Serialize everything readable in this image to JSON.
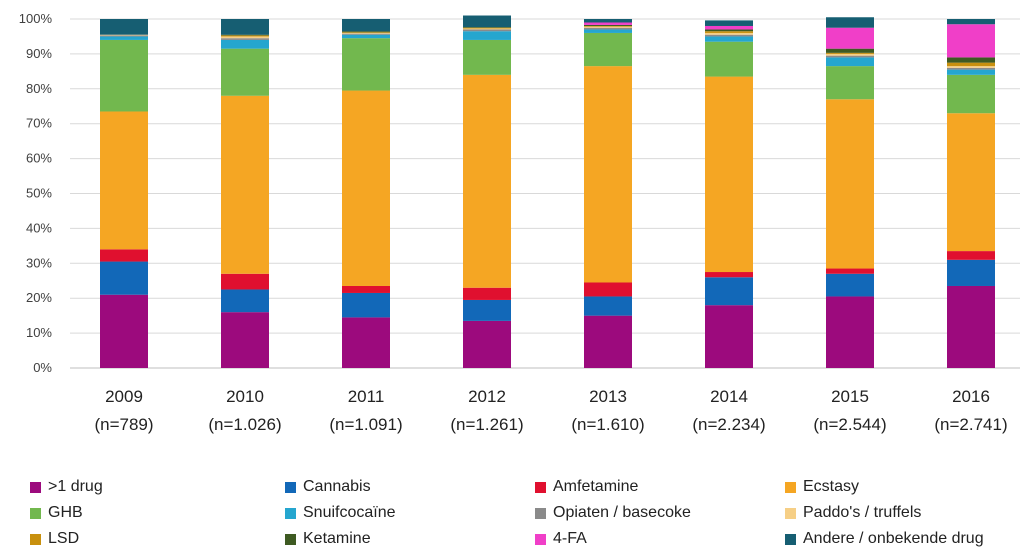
{
  "chart_data": {
    "type": "bar",
    "stacked": true,
    "percent": true,
    "ylim": [
      0,
      100
    ],
    "yticks": [
      "0%",
      "10%",
      "20%",
      "30%",
      "40%",
      "50%",
      "60%",
      "70%",
      "80%",
      "90%",
      "100%"
    ],
    "grid": true,
    "legend_position": "bottom",
    "categories": [
      "2009",
      "2010",
      "2011",
      "2012",
      "2013",
      "2014",
      "2015",
      "2016"
    ],
    "category_sublabels": [
      "(n=789)",
      "(n=1.026)",
      "(n=1.091)",
      "(n=1.261)",
      "(n=1.610)",
      "(n=2.234)",
      "(n=2.544)",
      "(n=2.741)"
    ],
    "series": [
      {
        "name": ">1 drug",
        "color": "#9c0a7d",
        "values": [
          21,
          16,
          14.5,
          13.5,
          15,
          18,
          20.5,
          23.5
        ]
      },
      {
        "name": "Cannabis",
        "color": "#1268b8",
        "values": [
          9.5,
          6.5,
          7,
          6,
          5.5,
          8,
          6.5,
          7.5
        ]
      },
      {
        "name": "Amfetamine",
        "color": "#e0102f",
        "values": [
          3.5,
          4.5,
          2,
          3.5,
          4,
          1.5,
          1.5,
          2.5
        ]
      },
      {
        "name": "Ecstasy",
        "color": "#f5a623",
        "values": [
          39.5,
          51,
          56,
          61,
          62,
          56,
          48.5,
          39.5
        ]
      },
      {
        "name": "GHB",
        "color": "#72b84e",
        "values": [
          20.5,
          13.5,
          15,
          10,
          9.5,
          10,
          9.5,
          11
        ]
      },
      {
        "name": "Snuifcocaïne",
        "color": "#25a6cf",
        "values": [
          1,
          2.5,
          1,
          2.5,
          1,
          1.5,
          2.5,
          1.5
        ]
      },
      {
        "name": "Opiaten / basecoke",
        "color": "#8a8a8a",
        "values": [
          0.3,
          0.5,
          0.3,
          0.5,
          0.5,
          0.5,
          0.5,
          0.5
        ]
      },
      {
        "name": "Paddo's / truffels",
        "color": "#f6cf86",
        "values": [
          0.2,
          0.5,
          0.2,
          0.3,
          0.3,
          0.5,
          0.5,
          0.5
        ]
      },
      {
        "name": "LSD",
        "color": "#c8900e",
        "values": [
          0,
          0.3,
          0.2,
          0.2,
          0.2,
          0.5,
          0.3,
          1
        ]
      },
      {
        "name": "Ketamine",
        "color": "#3e5a22",
        "values": [
          0,
          0.2,
          0.3,
          0.2,
          0.3,
          0.5,
          1.2,
          1.5
        ]
      },
      {
        "name": "4-FA",
        "color": "#f03fc8",
        "values": [
          0,
          0,
          0,
          0,
          0.7,
          1,
          6,
          9.5
        ]
      },
      {
        "name": "Andere / onbekende drug",
        "color": "#165e72",
        "values": [
          4.5,
          4.5,
          3.5,
          3.3,
          1,
          1.6,
          3,
          1.5
        ]
      }
    ]
  }
}
